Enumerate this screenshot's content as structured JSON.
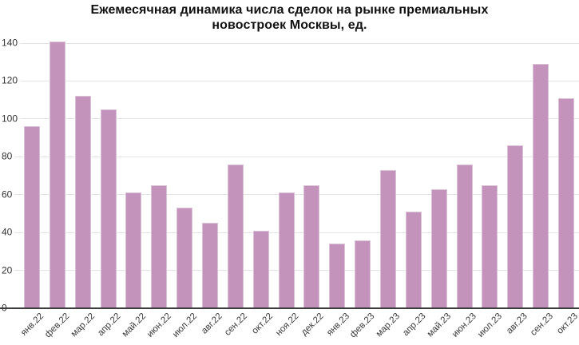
{
  "title": {
    "full": "Ежемесячная динамика числа сделок на рынке премиальных новостроек Москвы, ед.",
    "lines": [
      "Ежемесячная динамика числа сделок на рынке премиальных",
      "новостроек Москвы, ед."
    ]
  },
  "chart_data": {
    "type": "bar",
    "title": "Ежемесячная динамика числа сделок на рынке премиальных новостроек Москвы, ед.",
    "categories": [
      "янв.22",
      "фев.22",
      "мар.22",
      "апр.22",
      "май.22",
      "июн.22",
      "июл.22",
      "авг.22",
      "сен.22",
      "окт.22",
      "ноя.22",
      "дек.22",
      "янв.23",
      "фев.23",
      "мар.23",
      "апр.23",
      "май.23",
      "июн.23",
      "июл.23",
      "авг.23",
      "сен.23",
      "окт.23"
    ],
    "values": [
      96,
      141,
      112,
      105,
      61,
      65,
      53,
      45,
      76,
      41,
      61,
      65,
      34,
      36,
      73,
      51,
      63,
      76,
      65,
      86,
      129,
      111
    ],
    "xlabel": "",
    "ylabel": "",
    "ylim": [
      0,
      140
    ],
    "yticks": [
      0,
      20,
      40,
      60,
      80,
      100,
      120,
      140
    ],
    "grid": true,
    "legend": "none",
    "bar_color": "#c493bc",
    "bar_border_color": "#dcc2d6",
    "grid_color": "#e4e4e7",
    "axis_line_color": "#3c3c3c",
    "tick_label_color": "#3a3a3a"
  }
}
